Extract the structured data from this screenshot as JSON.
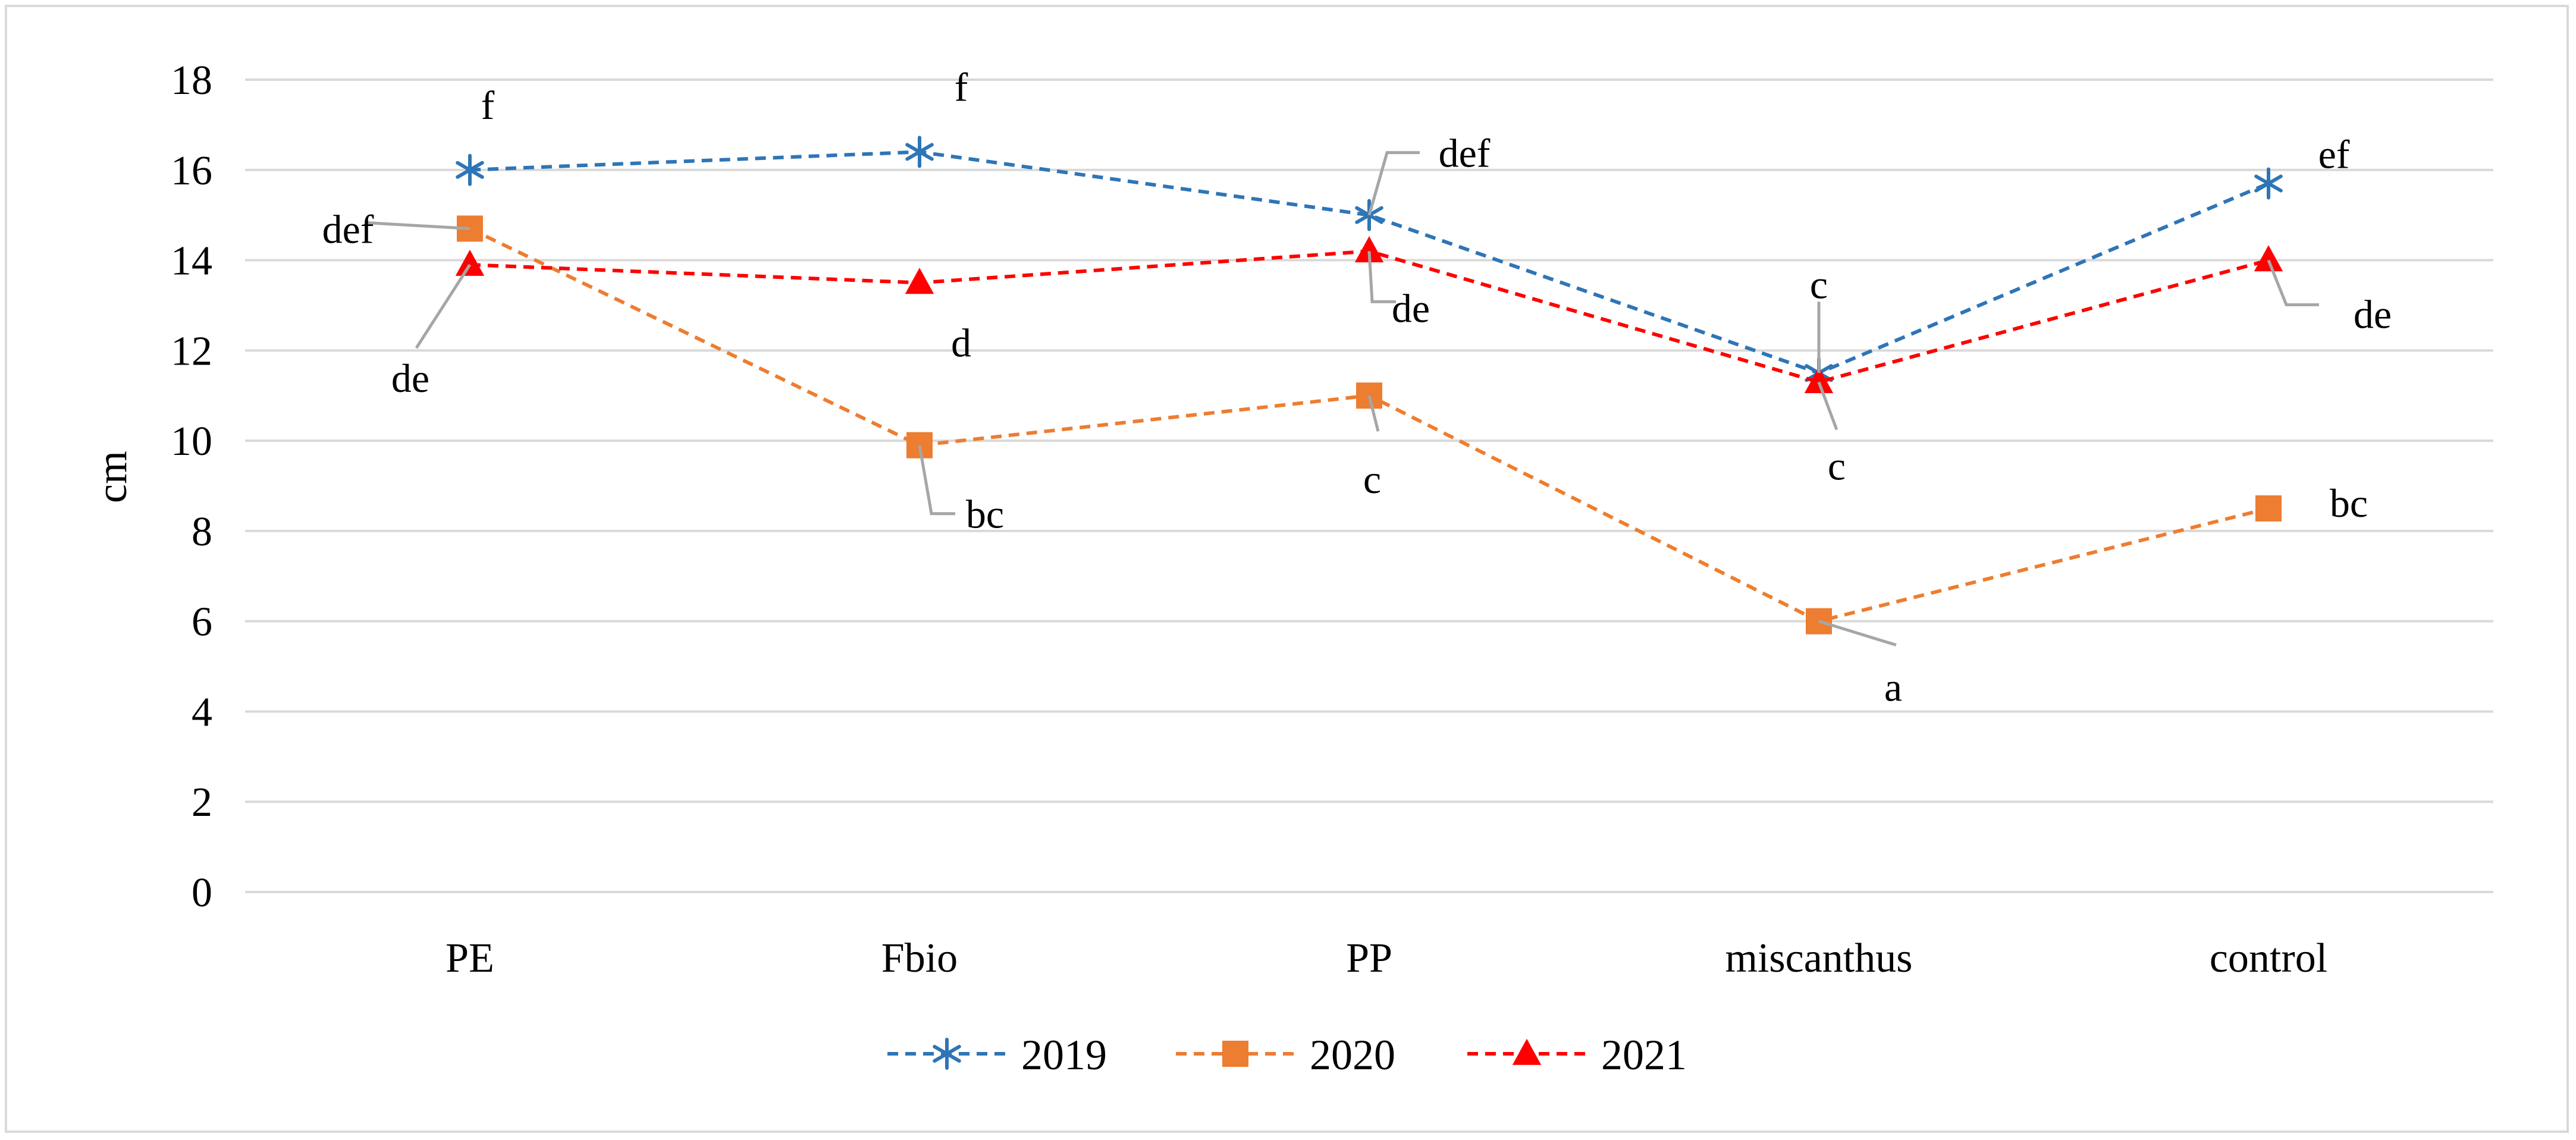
{
  "chart_data": {
    "type": "line",
    "title": "",
    "xlabel": "",
    "ylabel": "cm",
    "ylim": [
      0,
      18
    ],
    "yticks": [
      0,
      2,
      4,
      6,
      8,
      10,
      12,
      14,
      16,
      18
    ],
    "grid": true,
    "legend_position": "bottom",
    "categories": [
      "PE",
      "Fbio",
      "PP",
      "miscanthus",
      "control"
    ],
    "series": [
      {
        "name": "2019",
        "color": "#2e75b6",
        "marker": "star",
        "values": [
          16.0,
          16.4,
          15.0,
          11.5,
          15.7
        ],
        "labels": [
          "f",
          "f",
          "def",
          "c",
          "ef"
        ]
      },
      {
        "name": "2020",
        "color": "#ed7d31",
        "marker": "square",
        "values": [
          14.7,
          9.9,
          11.0,
          6.0,
          8.5
        ],
        "labels": [
          "def",
          "bc",
          "c",
          "a",
          "bc"
        ]
      },
      {
        "name": "2021",
        "color": "#ff0000",
        "marker": "triangle",
        "values": [
          13.9,
          13.5,
          14.2,
          11.3,
          14.0
        ],
        "labels": [
          "de",
          "d",
          "de",
          "c",
          "de"
        ]
      }
    ]
  }
}
